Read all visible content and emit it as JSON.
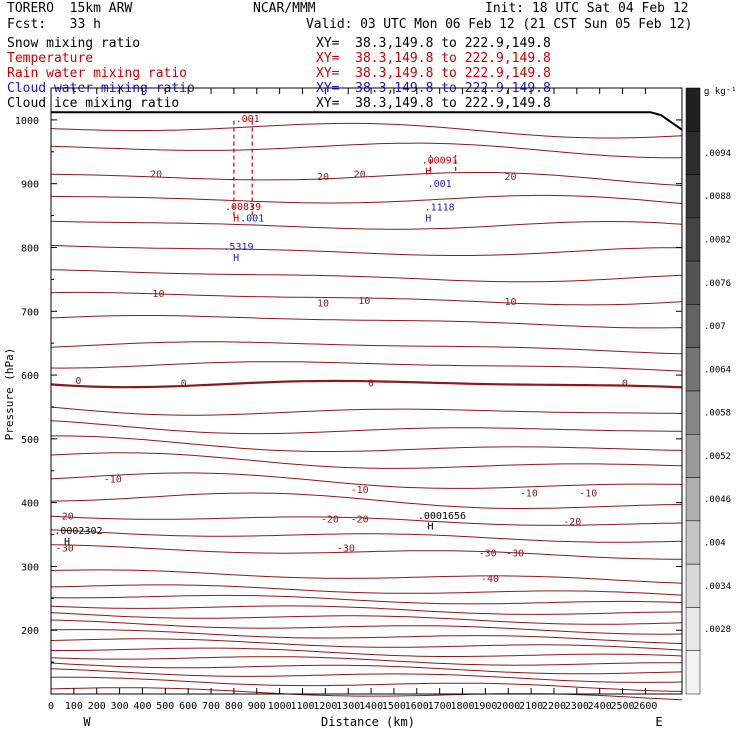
{
  "header": {
    "model": "TORERO  15km ARW",
    "forecast": "Fcst:   33 h",
    "center": "NCAR/MMM",
    "init": "Init: 18 UTC Sat 04 Feb 12",
    "valid": "Valid: 03 UTC Mon 06 Feb 12 (21 CST Sun 05 Feb 12)"
  },
  "fields": [
    {
      "name": "Snow mixing ratio",
      "xy": "XY=  38.3,149.8 to 222.9,149.8",
      "color": "#000000"
    },
    {
      "name": "Temperature",
      "xy": "XY=  38.3,149.8 to 222.9,149.8",
      "color": "#cc0000"
    },
    {
      "name": "Rain water mixing ratio",
      "xy": "XY=  38.3,149.8 to 222.9,149.8",
      "color": "#cc0000"
    },
    {
      "name": "Cloud water mixing ratio",
      "xy": "XY=  38.3,149.8 to 222.9,149.8",
      "color": "#1a1acc"
    },
    {
      "name": "Cloud ice mixing ratio",
      "xy": "XY=  38.3,149.8 to 222.9,149.8",
      "color": "#000000"
    }
  ],
  "chart_data": {
    "type": "contour",
    "xlabel": "Distance (km)",
    "ylabel": "Pressure (hPa)",
    "xlim": [
      0,
      2760
    ],
    "ylim": [
      1050,
      100
    ],
    "x_ticks": [
      "0",
      "100",
      "200",
      "300",
      "400",
      "500",
      "600",
      "700",
      "800",
      "900",
      "1000",
      "1100",
      "1200",
      "1300",
      "1400",
      "1500",
      "1600",
      "1700",
      "1800",
      "1900",
      "2000",
      "2100",
      "2200",
      "2300",
      "2400",
      "2500",
      "2600"
    ],
    "x_tick_values": [
      0,
      100,
      200,
      300,
      400,
      500,
      600,
      700,
      800,
      900,
      1000,
      1100,
      1200,
      1300,
      1400,
      1500,
      1600,
      1700,
      1800,
      1900,
      2000,
      2100,
      2200,
      2300,
      2400,
      2500,
      2600
    ],
    "y_ticks": [
      "200",
      "300",
      "400",
      "500",
      "600",
      "700",
      "800",
      "900",
      "1000"
    ],
    "y_tick_values": [
      200,
      300,
      400,
      500,
      600,
      700,
      800,
      900,
      1000
    ],
    "west_label": "W",
    "east_label": "E",
    "colorbar": {
      "unit": "g kg⁻¹",
      "labels": [
        ".0094",
        ".0088",
        ".0082",
        ".0076",
        ".007",
        ".0064",
        ".0058",
        ".0052",
        ".0046",
        ".004",
        ".0034",
        ".0028"
      ],
      "colors": [
        "#202020",
        "#2c2c2c",
        "#383838",
        "#444444",
        "#545454",
        "#636363",
        "#747474",
        "#868686",
        "#9a9a9a",
        "#afafaf",
        "#c4c4c4",
        "#d8d8d8",
        "#e8e8e8",
        "#f3f3f3"
      ]
    },
    "temperature_contour_labels": [
      {
        "text": "-40",
        "x": 1920,
        "p": 282,
        "color": "#8b1a1a"
      },
      {
        "text": "-30",
        "x": 60,
        "p": 330,
        "color": "#8b1a1a"
      },
      {
        "text": "-30",
        "x": 1290,
        "p": 330,
        "color": "#8b1a1a"
      },
      {
        "text": "-30",
        "x": 1910,
        "p": 322,
        "color": "#8b1a1a"
      },
      {
        "text": "-30",
        "x": 2030,
        "p": 322,
        "color": "#8b1a1a"
      },
      {
        "text": "-20",
        "x": 60,
        "p": 380,
        "color": "#8b1a1a"
      },
      {
        "text": "-20",
        "x": 1220,
        "p": 375,
        "color": "#8b1a1a"
      },
      {
        "text": "-20",
        "x": 1350,
        "p": 375,
        "color": "#8b1a1a"
      },
      {
        "text": "-20",
        "x": 2280,
        "p": 371,
        "color": "#8b1a1a"
      },
      {
        "text": "-10",
        "x": 270,
        "p": 438,
        "color": "#8b1a1a"
      },
      {
        "text": "-10",
        "x": 1350,
        "p": 421,
        "color": "#8b1a1a"
      },
      {
        "text": "-10",
        "x": 2090,
        "p": 416,
        "color": "#8b1a1a"
      },
      {
        "text": "-10",
        "x": 2350,
        "p": 416,
        "color": "#8b1a1a"
      },
      {
        "text": "0",
        "x": 120,
        "p": 592,
        "color": "#8b1a1a"
      },
      {
        "text": "0",
        "x": 580,
        "p": 588,
        "color": "#8b1a1a"
      },
      {
        "text": "0",
        "x": 1400,
        "p": 588,
        "color": "#8b1a1a"
      },
      {
        "text": "0",
        "x": 2510,
        "p": 588,
        "color": "#8b1a1a"
      },
      {
        "text": "10",
        "x": 470,
        "p": 729,
        "color": "#8b1a1a"
      },
      {
        "text": "10",
        "x": 1190,
        "p": 714,
        "color": "#8b1a1a"
      },
      {
        "text": "10",
        "x": 1370,
        "p": 718,
        "color": "#8b1a1a"
      },
      {
        "text": "10",
        "x": 2010,
        "p": 716,
        "color": "#8b1a1a"
      },
      {
        "text": "20",
        "x": 460,
        "p": 916,
        "color": "#8b1a1a"
      },
      {
        "text": "20",
        "x": 1190,
        "p": 912,
        "color": "#8b1a1a"
      },
      {
        "text": "20",
        "x": 1350,
        "p": 916,
        "color": "#8b1a1a"
      },
      {
        "text": "20",
        "x": 2010,
        "p": 912,
        "color": "#8b1a1a"
      }
    ],
    "extrema_labels": [
      {
        "text": "H",
        "x": 70,
        "p": 340,
        "color": "#000000"
      },
      {
        "text": ".0002302",
        "x": 120,
        "p": 357,
        "color": "#000000"
      },
      {
        "text": "H",
        "x": 1660,
        "p": 364,
        "color": "#000000"
      },
      {
        "text": ".0001656",
        "x": 1710,
        "p": 381,
        "color": "#000000"
      },
      {
        "text": "H",
        "x": 810,
        "p": 785,
        "color": "#1a1acc"
      },
      {
        "text": ".5319",
        "x": 820,
        "p": 802,
        "color": "#1a1acc"
      },
      {
        "text": "H",
        "x": 810,
        "p": 847,
        "color": "#cc0000"
      },
      {
        "text": ".001",
        "x": 880,
        "p": 847,
        "color": "#1a1acc"
      },
      {
        "text": ".00839",
        "x": 840,
        "p": 865,
        "color": "#cc0000"
      },
      {
        "text": "H",
        "x": 1650,
        "p": 847,
        "color": "#1a1acc"
      },
      {
        "text": ".1118",
        "x": 1700,
        "p": 864,
        "color": "#1a1acc"
      },
      {
        "text": ".001",
        "x": 1700,
        "p": 901,
        "color": "#1a1acc"
      },
      {
        "text": "H",
        "x": 1650,
        "p": 921,
        "color": "#cc0000"
      },
      {
        "text": ".00091",
        "x": 1700,
        "p": 938,
        "color": "#cc0000"
      },
      {
        "text": ".001",
        "x": 860,
        "p": 1003,
        "color": "#cc0000"
      }
    ]
  }
}
